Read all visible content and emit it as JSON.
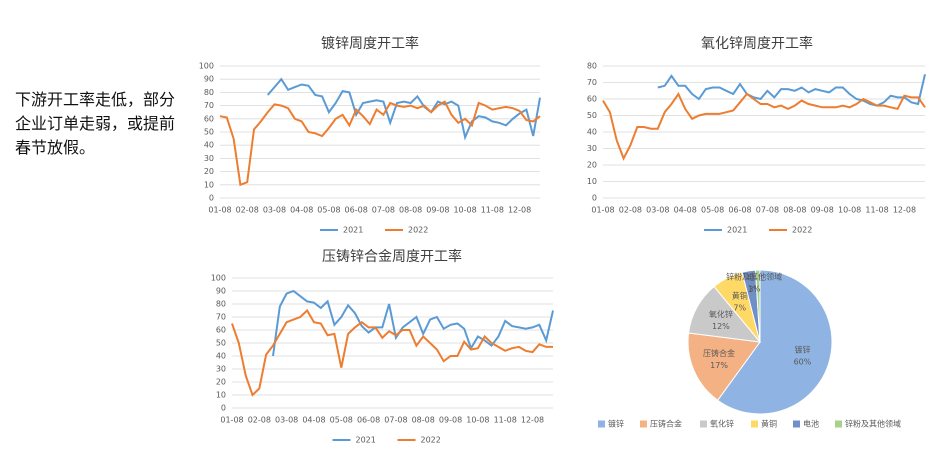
{
  "note": "下游开工率走低，部分企业订单走弱，或提前春节放假。",
  "chart_data": [
    {
      "type": "line",
      "title": "镀锌周度开工率",
      "categories": [
        "01-08",
        null,
        null,
        null,
        "02-08",
        null,
        null,
        null,
        "03-08",
        null,
        null,
        null,
        "04-08",
        null,
        null,
        null,
        "05-08",
        null,
        null,
        null,
        "06-08",
        null,
        null,
        null,
        "07-08",
        null,
        null,
        null,
        "08-08",
        null,
        null,
        null,
        "09-08",
        null,
        null,
        null,
        "10-08",
        null,
        null,
        null,
        "11-08",
        null,
        null,
        null,
        "12-08",
        null,
        null,
        null
      ],
      "ylim": [
        0,
        100
      ],
      "yticks": [
        0,
        10,
        20,
        30,
        40,
        50,
        60,
        70,
        80,
        90,
        100
      ],
      "grid": true,
      "series": [
        {
          "name": "2021",
          "color": "#5b9bd5",
          "values": [
            null,
            null,
            null,
            null,
            null,
            null,
            null,
            78,
            84,
            90,
            82,
            84,
            86,
            85,
            78,
            77,
            65,
            72,
            81,
            80,
            63,
            72,
            73,
            74,
            73,
            57,
            72,
            73,
            72,
            77,
            69,
            65,
            73,
            71,
            73,
            70,
            46,
            58,
            62,
            61,
            58,
            57,
            55,
            60,
            64,
            67,
            47,
            76
          ]
        },
        {
          "name": "2022",
          "color": "#ed7d31",
          "values": [
            62,
            61,
            45,
            10,
            12,
            52,
            58,
            65,
            71,
            70,
            68,
            60,
            58,
            50,
            49,
            47,
            53,
            60,
            63,
            55,
            67,
            62,
            56,
            67,
            63,
            72,
            70,
            69,
            70,
            68,
            70,
            65,
            70,
            73,
            63,
            57,
            60,
            55,
            72,
            70,
            67,
            68,
            69,
            68,
            66,
            59,
            58,
            62
          ]
        }
      ]
    },
    {
      "type": "line",
      "title": "氧化锌周度开工率",
      "categories": [
        "01-08",
        null,
        null,
        null,
        "02-08",
        null,
        null,
        null,
        "03-08",
        null,
        null,
        null,
        "04-08",
        null,
        null,
        null,
        "05-08",
        null,
        null,
        null,
        "06-08",
        null,
        null,
        null,
        "07-08",
        null,
        null,
        null,
        "08-08",
        null,
        null,
        null,
        "09-08",
        null,
        null,
        null,
        "10-08",
        null,
        null,
        null,
        "11-08",
        null,
        null,
        null,
        "12-08",
        null,
        null,
        null
      ],
      "ylim": [
        0,
        80
      ],
      "yticks": [
        0,
        10,
        20,
        30,
        40,
        50,
        60,
        70,
        80
      ],
      "grid": true,
      "series": [
        {
          "name": "2021",
          "color": "#5b9bd5",
          "values": [
            null,
            null,
            null,
            null,
            null,
            null,
            null,
            null,
            67,
            68,
            74,
            68,
            68,
            63,
            60,
            66,
            67,
            67,
            65,
            63,
            69,
            63,
            61,
            60,
            65,
            61,
            66,
            66,
            65,
            67,
            64,
            66,
            65,
            64,
            67,
            67,
            63,
            60,
            59,
            57,
            56,
            58,
            62,
            61,
            61,
            58,
            57,
            75
          ]
        },
        {
          "name": "2022",
          "color": "#ed7d31",
          "values": [
            59,
            52,
            35,
            24,
            32,
            43,
            43,
            42,
            42,
            52,
            57,
            63,
            54,
            48,
            50,
            51,
            51,
            51,
            52,
            53,
            58,
            63,
            60,
            57,
            57,
            55,
            56,
            54,
            56,
            59,
            57,
            56,
            55,
            55,
            55,
            56,
            55,
            57,
            60,
            58,
            56,
            56,
            55,
            54,
            62,
            61,
            61,
            55
          ]
        }
      ]
    },
    {
      "type": "line",
      "title": "压铸锌合金周度开工率",
      "categories": [
        "01-08",
        null,
        null,
        null,
        "02-08",
        null,
        null,
        null,
        "03-08",
        null,
        null,
        null,
        "04-08",
        null,
        null,
        null,
        "05-08",
        null,
        null,
        null,
        "06-08",
        null,
        null,
        null,
        "07-08",
        null,
        null,
        null,
        "08-08",
        null,
        null,
        null,
        "09-08",
        null,
        null,
        null,
        "10-08",
        null,
        null,
        null,
        "11-08",
        null,
        null,
        null,
        "12-08",
        null,
        null,
        null
      ],
      "ylim": [
        0,
        100
      ],
      "yticks": [
        0,
        10,
        20,
        30,
        40,
        50,
        60,
        70,
        80,
        90,
        100
      ],
      "grid": true,
      "series": [
        {
          "name": "2021",
          "color": "#5b9bd5",
          "values": [
            null,
            null,
            null,
            null,
            null,
            null,
            40,
            78,
            88,
            90,
            86,
            82,
            81,
            77,
            82,
            64,
            70,
            79,
            73,
            63,
            58,
            62,
            62,
            80,
            54,
            62,
            66,
            70,
            57,
            68,
            70,
            61,
            64,
            65,
            61,
            46,
            55,
            52,
            48,
            55,
            67,
            63,
            62,
            61,
            62,
            64,
            52,
            75
          ]
        },
        {
          "name": "2022",
          "color": "#ed7d31",
          "values": [
            65,
            50,
            25,
            10,
            15,
            41,
            48,
            57,
            66,
            68,
            70,
            75,
            66,
            65,
            56,
            57,
            31,
            57,
            62,
            66,
            62,
            62,
            54,
            59,
            56,
            60,
            60,
            48,
            55,
            50,
            45,
            36,
            40,
            40,
            51,
            45,
            46,
            55,
            50,
            47,
            44,
            46,
            47,
            44,
            43,
            49,
            47,
            47
          ]
        }
      ]
    },
    {
      "type": "pie",
      "categories": [
        "镀锌",
        "压铸合金",
        "氧化锌",
        "黄铜",
        "电池",
        "锌粉及其他领域"
      ],
      "values": [
        60,
        17,
        12,
        7,
        3,
        1
      ],
      "value_labels": [
        "60%",
        "17%",
        "12%",
        "7%",
        "3%",
        "1%"
      ],
      "colors": [
        "#8fb4e3",
        "#f4b183",
        "#c9c9c9",
        "#ffd966",
        "#6f8fc8",
        "#a9d18e"
      ]
    }
  ]
}
